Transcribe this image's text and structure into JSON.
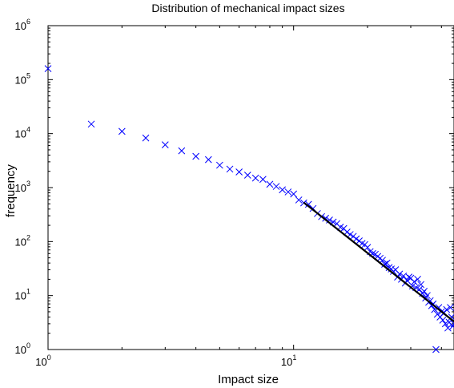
{
  "chart_data": {
    "type": "scatter",
    "title": "Distribution of mechanical impact sizes",
    "xlabel": "Impact size",
    "ylabel": "frequency",
    "xscale": "log",
    "yscale": "log",
    "xlim": [
      1,
      45
    ],
    "ylim": [
      1,
      1000000
    ],
    "x_ticks": [
      {
        "base": "10",
        "exp": "0",
        "value": 1
      },
      {
        "base": "10",
        "exp": "1",
        "value": 10
      }
    ],
    "y_ticks": [
      {
        "base": "10",
        "exp": "0",
        "value": 1
      },
      {
        "base": "10",
        "exp": "1",
        "value": 10
      },
      {
        "base": "10",
        "exp": "2",
        "value": 100
      },
      {
        "base": "10",
        "exp": "3",
        "value": 1000
      },
      {
        "base": "10",
        "exp": "4",
        "value": 10000
      },
      {
        "base": "10",
        "exp": "5",
        "value": 100000
      },
      {
        "base": "10",
        "exp": "6",
        "value": 1000000
      }
    ],
    "grid": false,
    "marker_color": "#0000ff",
    "fit_line_color": "#000000",
    "series": [
      {
        "marker": "x",
        "points": [
          [
            1,
            160000
          ],
          [
            1.5,
            15000
          ],
          [
            2,
            11000
          ],
          [
            2.5,
            8300
          ],
          [
            3,
            6200
          ],
          [
            3.5,
            4800
          ],
          [
            4,
            3800
          ],
          [
            4.5,
            3300
          ],
          [
            5,
            2600
          ],
          [
            5.5,
            2200
          ],
          [
            6,
            1950
          ],
          [
            6.5,
            1700
          ],
          [
            7,
            1500
          ],
          [
            7.5,
            1420
          ],
          [
            8,
            1150
          ],
          [
            8.5,
            1050
          ],
          [
            9,
            910
          ],
          [
            9.5,
            830
          ],
          [
            10,
            760
          ],
          [
            10.5,
            590
          ],
          [
            11,
            520
          ],
          [
            11.5,
            490
          ],
          [
            12,
            410
          ],
          [
            12.5,
            330
          ],
          [
            13,
            290
          ],
          [
            13.5,
            270
          ],
          [
            14,
            250
          ],
          [
            14.5,
            230
          ],
          [
            15,
            215
          ],
          [
            15.5,
            185
          ],
          [
            16,
            175
          ],
          [
            16.5,
            150
          ],
          [
            17,
            135
          ],
          [
            17.5,
            125
          ],
          [
            18,
            112
          ],
          [
            18.5,
            103
          ],
          [
            19,
            92
          ],
          [
            19.5,
            88
          ],
          [
            20,
            78
          ],
          [
            20.5,
            65
          ],
          [
            21,
            60
          ],
          [
            21.5,
            58
          ],
          [
            22,
            53
          ],
          [
            22.5,
            49
          ],
          [
            23,
            45
          ],
          [
            23.5,
            38
          ],
          [
            24,
            40
          ],
          [
            24.5,
            33
          ],
          [
            25,
            31
          ],
          [
            25.5,
            28
          ],
          [
            26,
            30
          ],
          [
            26.5,
            22
          ],
          [
            27,
            25
          ],
          [
            27.5,
            20
          ],
          [
            28,
            23
          ],
          [
            28.5,
            17
          ],
          [
            29,
            19
          ],
          [
            29.5,
            22
          ],
          [
            30,
            21
          ],
          [
            30.5,
            15
          ],
          [
            31,
            18
          ],
          [
            31.5,
            14
          ],
          [
            32,
            20
          ],
          [
            32.5,
            13
          ],
          [
            33,
            16
          ],
          [
            33.5,
            11
          ],
          [
            34,
            12
          ],
          [
            34.5,
            9
          ],
          [
            35,
            10
          ],
          [
            35.5,
            7.5
          ],
          [
            36,
            8
          ],
          [
            36.5,
            6.5
          ],
          [
            37,
            7
          ],
          [
            37.5,
            5.5
          ],
          [
            38,
            1
          ],
          [
            38.5,
            4.5
          ],
          [
            39,
            6
          ],
          [
            39.5,
            4
          ],
          [
            40,
            5
          ],
          [
            40.5,
            3.5
          ],
          [
            41,
            4.8
          ],
          [
            41.5,
            3
          ],
          [
            42,
            5.5
          ],
          [
            42.5,
            2.5
          ],
          [
            43,
            3.2
          ],
          [
            43.5,
            6
          ],
          [
            44,
            4
          ],
          [
            44.5,
            2.7
          ],
          [
            45,
            3
          ]
        ]
      },
      {
        "marker": "line",
        "points": [
          [
            11,
            530
          ],
          [
            45,
            3.3
          ]
        ]
      }
    ]
  }
}
